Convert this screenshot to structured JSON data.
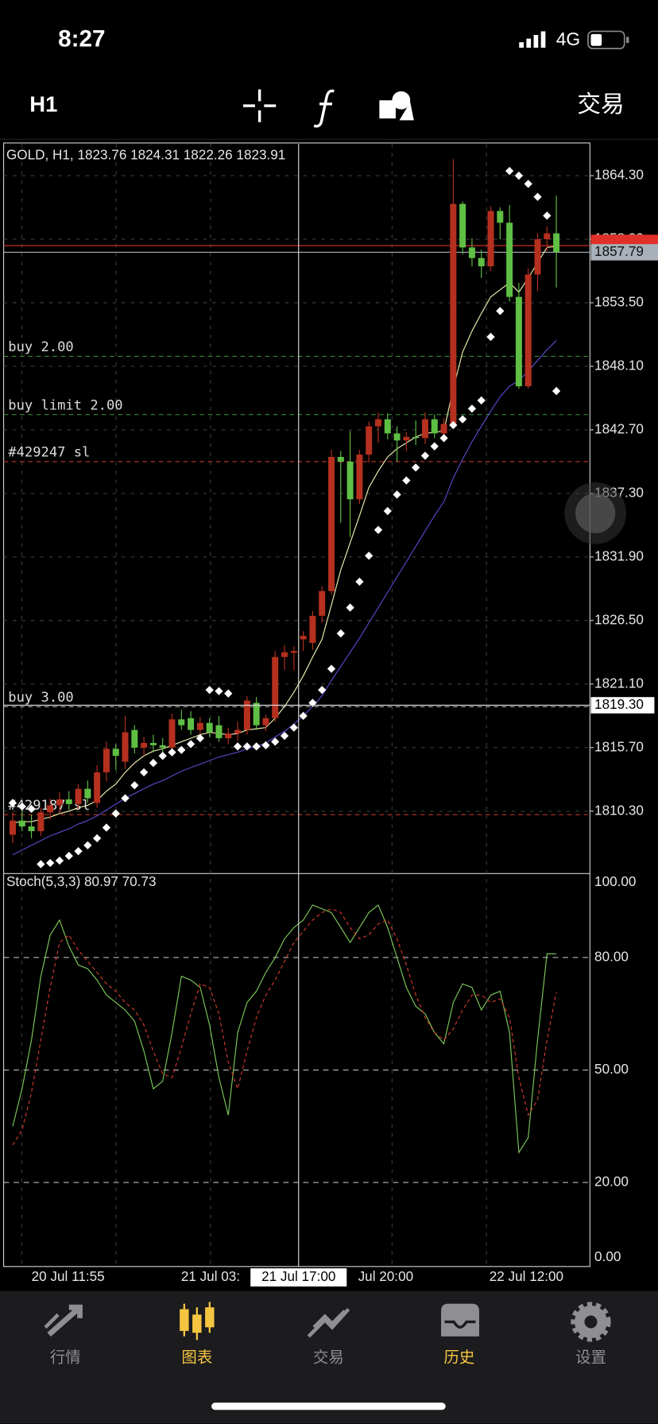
{
  "status_bar": {
    "time": "8:27",
    "network": "4G"
  },
  "toolbar": {
    "timeframe": "H1",
    "trade": "交易"
  },
  "chart_data": [
    {
      "type": "candlestick",
      "title": "GOLD, H1, 1823.76 1824.31 1822.26 1823.91",
      "up_color": "#b5301f",
      "down_color": "#5fbf45",
      "ohlc": [
        [
          1808.3,
          1810.2,
          1807.6,
          1809.5
        ],
        [
          1809.5,
          1810.8,
          1808.6,
          1809.0
        ],
        [
          1809.0,
          1810.0,
          1808.0,
          1808.6
        ],
        [
          1808.6,
          1810.6,
          1808.2,
          1810.2
        ],
        [
          1810.2,
          1811.4,
          1809.6,
          1810.8
        ],
        [
          1810.8,
          1811.9,
          1810.1,
          1811.3
        ],
        [
          1811.3,
          1812.0,
          1810.4,
          1810.9
        ],
        [
          1810.9,
          1812.6,
          1810.5,
          1812.2
        ],
        [
          1812.2,
          1812.9,
          1811.0,
          1811.4
        ],
        [
          1811.0,
          1814.2,
          1810.6,
          1813.6
        ],
        [
          1813.6,
          1816.2,
          1812.8,
          1815.6
        ],
        [
          1815.6,
          1816.0,
          1813.8,
          1815.0
        ],
        [
          1814.5,
          1818.4,
          1813.9,
          1817.0
        ],
        [
          1817.2,
          1817.6,
          1815.2,
          1815.7
        ],
        [
          1815.7,
          1816.6,
          1815.0,
          1816.1
        ],
        [
          1816.1,
          1816.8,
          1815.3,
          1815.9
        ],
        [
          1815.9,
          1816.5,
          1815.0,
          1815.7
        ],
        [
          1815.7,
          1818.6,
          1815.5,
          1818.1
        ],
        [
          1818.1,
          1818.9,
          1817.2,
          1817.6
        ],
        [
          1818.2,
          1818.8,
          1816.8,
          1817.2
        ],
        [
          1817.2,
          1818.3,
          1816.8,
          1817.8
        ],
        [
          1817.8,
          1818.2,
          1816.6,
          1817.0
        ],
        [
          1817.6,
          1818.4,
          1816.2,
          1816.5
        ],
        [
          1816.5,
          1817.4,
          1816.0,
          1816.9
        ],
        [
          1816.9,
          1817.9,
          1816.3,
          1817.2
        ],
        [
          1817.2,
          1820.1,
          1816.8,
          1819.7
        ],
        [
          1819.5,
          1820.0,
          1817.2,
          1817.6
        ],
        [
          1817.6,
          1818.5,
          1817.1,
          1818.2
        ],
        [
          1818.2,
          1823.9,
          1817.9,
          1823.4
        ],
        [
          1823.4,
          1824.4,
          1822.3,
          1823.8
        ],
        [
          1823.76,
          1824.31,
          1822.26,
          1823.91
        ],
        [
          1824.9,
          1825.6,
          1823.9,
          1825.2
        ],
        [
          1824.6,
          1827.3,
          1824.0,
          1826.9
        ],
        [
          1826.9,
          1829.4,
          1826.3,
          1829.0
        ],
        [
          1829.0,
          1841.0,
          1828.7,
          1840.4
        ],
        [
          1840.4,
          1840.9,
          1834.8,
          1840.0
        ],
        [
          1840.0,
          1842.6,
          1833.6,
          1836.8
        ],
        [
          1836.8,
          1841.0,
          1836.4,
          1840.6
        ],
        [
          1840.6,
          1843.4,
          1839.9,
          1843.0
        ],
        [
          1843.0,
          1844.2,
          1841.6,
          1843.6
        ],
        [
          1843.6,
          1844.1,
          1841.9,
          1842.4
        ],
        [
          1842.4,
          1843.0,
          1840.0,
          1841.8
        ],
        [
          1841.8,
          1842.5,
          1840.9,
          1842.1
        ],
        [
          1842.1,
          1843.5,
          1841.4,
          1842.0
        ],
        [
          1842.0,
          1844.2,
          1841.5,
          1843.6
        ],
        [
          1843.6,
          1844.0,
          1842.0,
          1842.4
        ],
        [
          1842.4,
          1843.7,
          1842.0,
          1843.2
        ],
        [
          1843.2,
          1865.7,
          1842.8,
          1861.9
        ],
        [
          1861.9,
          1862.1,
          1857.6,
          1858.2
        ],
        [
          1858.2,
          1859.0,
          1856.6,
          1857.3
        ],
        [
          1857.3,
          1858.0,
          1855.6,
          1856.6
        ],
        [
          1856.6,
          1861.7,
          1856.2,
          1861.3
        ],
        [
          1861.3,
          1861.6,
          1858.9,
          1860.3
        ],
        [
          1860.3,
          1861.8,
          1853.6,
          1854.0
        ],
        [
          1854.0,
          1855.2,
          1846.2,
          1846.4
        ],
        [
          1846.4,
          1856.4,
          1846.2,
          1855.9
        ],
        [
          1855.9,
          1859.4,
          1854.5,
          1858.9
        ],
        [
          1858.9,
          1860.0,
          1857.9,
          1859.4
        ],
        [
          1859.4,
          1862.6,
          1854.8,
          1857.8
        ]
      ],
      "series": [
        {
          "color": "#f2f0b0",
          "values": [
            1809.3,
            1809.4,
            1809.4,
            1809.6,
            1809.8,
            1810.1,
            1810.3,
            1810.6,
            1810.8,
            1811.2,
            1812.0,
            1812.6,
            1813.6,
            1814.4,
            1815.0,
            1815.4,
            1815.6,
            1815.9,
            1816.2,
            1816.5,
            1816.8,
            1817.0,
            1816.9,
            1816.8,
            1816.9,
            1817.2,
            1817.3,
            1817.4,
            1818.2,
            1819.2,
            1820.4,
            1821.8,
            1823.4,
            1824.9,
            1827.8,
            1830.8,
            1833.1,
            1835.4,
            1837.8,
            1839.2,
            1840.4,
            1841.1,
            1841.6,
            1842.1,
            1842.4,
            1842.5,
            1842.6,
            1846.2,
            1849.3,
            1851.1,
            1852.6,
            1854.0,
            1854.6,
            1855.2,
            1854.4,
            1855.6,
            1856.9,
            1858.2,
            1858.3
          ]
        },
        {
          "color": "#5a48c8",
          "values": [
            1806.6,
            1807.0,
            1807.4,
            1807.8,
            1808.2,
            1808.5,
            1808.8,
            1809.2,
            1809.5,
            1809.9,
            1810.4,
            1810.9,
            1811.4,
            1811.8,
            1812.2,
            1812.6,
            1812.9,
            1813.3,
            1813.7,
            1814.0,
            1814.3,
            1814.6,
            1814.9,
            1815.1,
            1815.3,
            1815.6,
            1815.8,
            1816.1,
            1816.6,
            1817.1,
            1817.7,
            1818.4,
            1819.2,
            1820.1,
            1821.4,
            1822.6,
            1823.8,
            1825.0,
            1826.3,
            1827.6,
            1828.9,
            1830.2,
            1831.5,
            1832.8,
            1834.1,
            1835.4,
            1836.6,
            1838.6,
            1840.2,
            1841.7,
            1843.0,
            1844.3,
            1845.5,
            1846.4,
            1846.9,
            1847.7,
            1848.6,
            1849.5,
            1850.3
          ]
        }
      ],
      "sar": {
        "color": "#ffffff",
        "values": [
          1811.0,
          1810.7,
          1810.5,
          1805.8,
          1805.9,
          1806.1,
          1806.5,
          1806.9,
          1807.4,
          1808.0,
          1808.9,
          1810.1,
          1811.4,
          1812.5,
          1813.6,
          1814.4,
          1815.0,
          1815.3,
          1815.5,
          1816.0,
          1816.5,
          1820.6,
          1820.5,
          1820.3,
          1815.8,
          1815.8,
          1815.8,
          1815.9,
          1816.2,
          1816.7,
          1817.4,
          1818.4,
          1819.5,
          1820.6,
          1822.4,
          1825.4,
          1827.6,
          1829.8,
          1832.0,
          1834.2,
          1835.8,
          1837.2,
          1838.4,
          1839.5,
          1840.5,
          1841.3,
          1842.0,
          1843.1,
          1843.6,
          1844.5,
          1845.2,
          1850.6,
          1852.8,
          1864.7,
          1864.3,
          1863.6,
          1862.5,
          1860.9,
          1846.0
        ]
      },
      "levels": [
        {
          "label": "buy 2.00",
          "value": 1848.95,
          "color": "#2f8a3a"
        },
        {
          "label": "buy limit 2.00",
          "value": 1844.0,
          "color": "#2f8a3a"
        },
        {
          "label": "#429247 sl",
          "value": 1840.0,
          "color": "#c0392b"
        },
        {
          "label": "buy 3.00",
          "value": 1819.17,
          "color": "#9a9a9a"
        },
        {
          "label": "#429187 sl",
          "value": 1810.0,
          "color": "#c0392b"
        }
      ],
      "bid_line": {
        "value": 1858.36,
        "color": "#e0302a"
      },
      "ask_line": {
        "value": 1857.79,
        "label": "1857.79",
        "color": "#a8b0ba"
      },
      "crosshair": {
        "value": 1819.3,
        "label": "1819.30",
        "time": "21 Jul 17:00"
      },
      "ylim": [
        1805.0,
        1867.0
      ],
      "yticks": [
        {
          "value": 1864.3,
          "label": "1864.30"
        },
        {
          "value": 1858.9,
          "label": "1858.90"
        },
        {
          "value": 1853.5,
          "label": "1853.50"
        },
        {
          "value": 1848.1,
          "label": "1848.10"
        },
        {
          "value": 1842.7,
          "label": "1842.70"
        },
        {
          "value": 1837.3,
          "label": "1837.30"
        },
        {
          "value": 1831.9,
          "label": "1831.90"
        },
        {
          "value": 1826.5,
          "label": "1826.50"
        },
        {
          "value": 1821.1,
          "label": "1821.10"
        },
        {
          "value": 1815.7,
          "label": "1815.70"
        },
        {
          "value": 1810.3,
          "label": "1810.30"
        }
      ],
      "grid": true
    },
    {
      "type": "line",
      "title": "Stoch(5,3,3) 80.97 70.73",
      "series": [
        {
          "color": "#7cc85a",
          "dash": false,
          "values": [
            35,
            45,
            58,
            75,
            86,
            90,
            83,
            78,
            77,
            74,
            70,
            68,
            66,
            63,
            55,
            45,
            47,
            60,
            75,
            74,
            72,
            62,
            48,
            38,
            60,
            68,
            71,
            76,
            80,
            85,
            88,
            90,
            94,
            93,
            92,
            88,
            84,
            88,
            92,
            94,
            88,
            80,
            72,
            67,
            65,
            60,
            57,
            68,
            73,
            72,
            66,
            70,
            71,
            60,
            28,
            32,
            58,
            81,
            80.97
          ]
        },
        {
          "color": "#d03a2a",
          "dash": true,
          "values": [
            30,
            34,
            44,
            58,
            72,
            84,
            86,
            82,
            79,
            76,
            73,
            71,
            68,
            66,
            62,
            55,
            49,
            48,
            56,
            65,
            73,
            72,
            65,
            52,
            45,
            55,
            64,
            70,
            74,
            79,
            84,
            87,
            90,
            92,
            93,
            92,
            88,
            85,
            86,
            89,
            90,
            85,
            78,
            70,
            64,
            60,
            58,
            61,
            66,
            70,
            70,
            68,
            69,
            64,
            48,
            38,
            42,
            58,
            70.73
          ]
        }
      ],
      "ylim": [
        -2.4,
        102.4
      ],
      "yticks": [
        {
          "value": 100,
          "label": "100.00"
        },
        {
          "value": 80,
          "label": "80.00"
        },
        {
          "value": 50,
          "label": "50.00"
        },
        {
          "value": 20,
          "label": "20.00"
        },
        {
          "value": 0,
          "label": "0.00"
        }
      ],
      "grid": true
    }
  ],
  "x_labels": [
    "20 Jul 11:55",
    "21 Jul 03:",
    "Jul 20:00",
    "22 Jul 12:00"
  ],
  "tabs": [
    {
      "label": "行情"
    },
    {
      "label": "图表"
    },
    {
      "label": "交易"
    },
    {
      "label": "历史"
    },
    {
      "label": "设置"
    }
  ]
}
